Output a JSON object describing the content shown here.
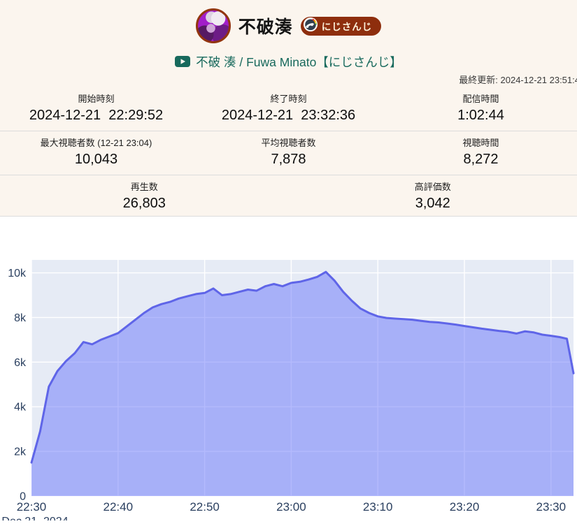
{
  "page": {
    "bg_top": "#fbf5ee",
    "bg_bottom": "#ffffff"
  },
  "header": {
    "channel_name": "不破湊",
    "agency_badge": {
      "label": "にじさんじ",
      "bg": "#8e2e0d",
      "text_color": "#fdf3dd"
    },
    "video_link": {
      "label": "不破 湊 / Fuwa Minato【にじさんじ】",
      "color": "#17695c"
    },
    "last_updated": "最終更新: 2024-12-21 23:51:4"
  },
  "stats": {
    "rows": [
      [
        {
          "label": "開始時刻",
          "value": "2024-12-21  22:29:52"
        },
        {
          "label": "終了時刻",
          "value": "2024-12-21  23:32:36"
        },
        {
          "label": "配信時間",
          "value": "1:02:44"
        }
      ],
      [
        {
          "label": "最大視聴者数 (12-21 23:04)",
          "value": "10,043"
        },
        {
          "label": "平均視聴者数",
          "value": "7,878"
        },
        {
          "label": "視聴時間",
          "value": "8,272"
        }
      ],
      [
        {
          "label": "再生数",
          "value": "26,803"
        },
        {
          "label": "高評価数",
          "value": "3,042"
        }
      ]
    ]
  },
  "chart_data": {
    "type": "area",
    "title": "",
    "xlabel": "Dec 21, 2024",
    "ylabel": "",
    "legend": "none",
    "grid": true,
    "x_ticks": [
      "22:30",
      "22:40",
      "22:50",
      "23:00",
      "23:10",
      "23:20",
      "23:30"
    ],
    "x_tick_minutes": [
      0,
      10,
      20,
      30,
      40,
      50,
      60
    ],
    "x_range_minutes": [
      0,
      62.6
    ],
    "y_ticks": [
      "0",
      "2k",
      "4k",
      "6k",
      "8k",
      "10k"
    ],
    "y_tick_values": [
      0,
      2000,
      4000,
      6000,
      8000,
      10000
    ],
    "ylim": [
      0,
      10580
    ],
    "series": [
      {
        "name": "viewers",
        "points": [
          [
            "22:30",
            1500
          ],
          [
            "22:31",
            2900
          ],
          [
            "22:32",
            4900
          ],
          [
            "22:33",
            5600
          ],
          [
            "22:34",
            6050
          ],
          [
            "22:35",
            6400
          ],
          [
            "22:36",
            6900
          ],
          [
            "22:37",
            6800
          ],
          [
            "22:38",
            7000
          ],
          [
            "22:39",
            7150
          ],
          [
            "22:40",
            7300
          ],
          [
            "22:41",
            7600
          ],
          [
            "22:42",
            7900
          ],
          [
            "22:43",
            8200
          ],
          [
            "22:44",
            8450
          ],
          [
            "22:45",
            8600
          ],
          [
            "22:46",
            8700
          ],
          [
            "22:47",
            8850
          ],
          [
            "22:48",
            8950
          ],
          [
            "22:49",
            9050
          ],
          [
            "22:50",
            9100
          ],
          [
            "22:51",
            9300
          ],
          [
            "22:52",
            9000
          ],
          [
            "22:53",
            9050
          ],
          [
            "22:54",
            9150
          ],
          [
            "22:55",
            9250
          ],
          [
            "22:56",
            9200
          ],
          [
            "22:57",
            9400
          ],
          [
            "22:58",
            9500
          ],
          [
            "22:59",
            9400
          ],
          [
            "23:00",
            9550
          ],
          [
            "23:01",
            9600
          ],
          [
            "23:02",
            9700
          ],
          [
            "23:03",
            9820
          ],
          [
            "23:04",
            10043
          ],
          [
            "23:05",
            9650
          ],
          [
            "23:06",
            9150
          ],
          [
            "23:07",
            8750
          ],
          [
            "23:08",
            8400
          ],
          [
            "23:09",
            8200
          ],
          [
            "23:10",
            8050
          ],
          [
            "23:11",
            7980
          ],
          [
            "23:12",
            7950
          ],
          [
            "23:13",
            7930
          ],
          [
            "23:14",
            7900
          ],
          [
            "23:15",
            7850
          ],
          [
            "23:16",
            7800
          ],
          [
            "23:17",
            7780
          ],
          [
            "23:18",
            7730
          ],
          [
            "23:19",
            7680
          ],
          [
            "23:20",
            7620
          ],
          [
            "23:21",
            7560
          ],
          [
            "23:22",
            7500
          ],
          [
            "23:23",
            7450
          ],
          [
            "23:24",
            7400
          ],
          [
            "23:25",
            7360
          ],
          [
            "23:26",
            7280
          ],
          [
            "23:27",
            7380
          ],
          [
            "23:28",
            7330
          ],
          [
            "23:29",
            7230
          ],
          [
            "23:30",
            7180
          ],
          [
            "23:31",
            7120
          ],
          [
            "23:31:50",
            7050
          ],
          [
            "23:32:36",
            5500
          ]
        ]
      }
    ],
    "colors": {
      "line": "#5f65e8",
      "fill": "rgba(99,110,250,0.48)",
      "plot_bg": "#e6ebf5",
      "grid": "#ffffff",
      "tick": "#2a3f5f"
    }
  }
}
